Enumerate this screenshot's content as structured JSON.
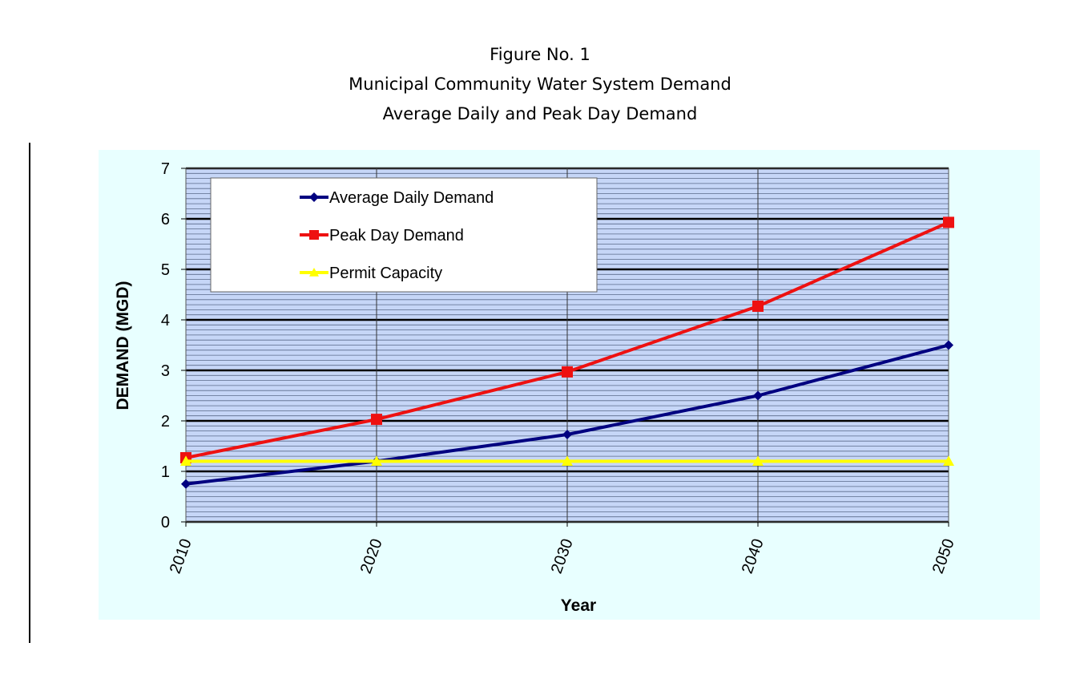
{
  "figure": {
    "number": "Figure No. 1",
    "title": "Municipal Community Water System Demand",
    "subtitle": "Average Daily and Peak Day Demand"
  },
  "chart_data": {
    "type": "line",
    "title": "Municipal Community Water System Demand",
    "subtitle": "Average Daily and Peak Day Demand",
    "xlabel": "Year",
    "ylabel": "DEMAND (MGD)",
    "x": [
      "2010",
      "2020",
      "2030",
      "2040",
      "2050"
    ],
    "ylim": [
      0,
      7
    ],
    "yticks": [
      0,
      1,
      2,
      3,
      4,
      5,
      6,
      7
    ],
    "grid": true,
    "legend_position": "top-left",
    "plot_background": "#c6d6f7",
    "chart_background": "#e8ffff",
    "series": [
      {
        "name": "Average Daily Demand",
        "color": "#000080",
        "marker": "diamond",
        "values": [
          0.75,
          1.2,
          1.73,
          2.5,
          3.5
        ]
      },
      {
        "name": "Peak Day Demand",
        "color": "#ee1111",
        "marker": "square",
        "values": [
          1.27,
          2.03,
          2.97,
          4.27,
          5.93
        ]
      },
      {
        "name": "Permit Capacity",
        "color": "#ffff00",
        "marker": "triangle",
        "values": [
          1.2,
          1.2,
          1.2,
          1.2,
          1.2
        ]
      }
    ]
  }
}
